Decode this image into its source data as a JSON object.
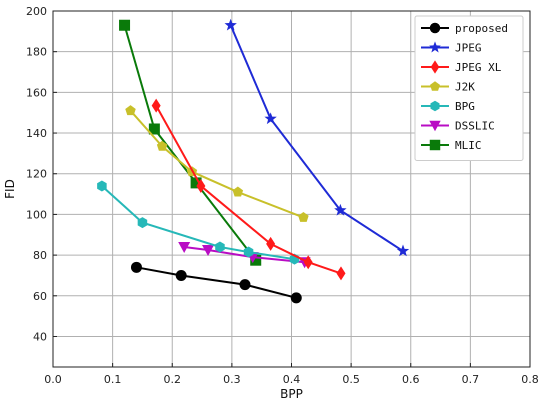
{
  "chart_data": {
    "type": "line",
    "title": "",
    "xlabel": "BPP",
    "ylabel": "FID",
    "xlim": [
      0.0,
      0.8
    ],
    "ylim": [
      25,
      200
    ],
    "xticks": [
      0.0,
      0.1,
      0.2,
      0.3,
      0.4,
      0.5,
      0.6,
      0.7,
      0.8
    ],
    "xtick_labels": [
      "0.0",
      "0.1",
      "0.2",
      "0.3",
      "0.4",
      "0.5",
      "0.6",
      "0.7",
      "0.8"
    ],
    "yticks": [
      40,
      60,
      80,
      100,
      120,
      140,
      160,
      180,
      200
    ],
    "ytick_labels": [
      "40",
      "60",
      "80",
      "100",
      "120",
      "140",
      "160",
      "180",
      "200"
    ],
    "grid": true,
    "legend_position": "top-right",
    "series": [
      {
        "name": "proposed",
        "color": "#000000",
        "marker": "circle",
        "x": [
          0.14,
          0.215,
          0.322,
          0.408
        ],
        "y": [
          74,
          70,
          65.5,
          59
        ]
      },
      {
        "name": "JPEG",
        "color": "#1f2bd6",
        "marker": "star",
        "x": [
          0.298,
          0.365,
          0.482,
          0.587
        ],
        "y": [
          193,
          147,
          102,
          82
        ]
      },
      {
        "name": "JPEG XL",
        "color": "#ff1a1a",
        "marker": "diamond",
        "x": [
          0.173,
          0.248,
          0.365,
          0.428,
          0.483
        ],
        "y": [
          153.5,
          114,
          85.5,
          76.5,
          71
        ]
      },
      {
        "name": "J2K",
        "color": "#c8c02a",
        "marker": "pentagon",
        "x": [
          0.13,
          0.183,
          0.233,
          0.31,
          0.42
        ],
        "y": [
          151,
          133.5,
          121,
          111,
          98.5
        ]
      },
      {
        "name": "BPG",
        "color": "#26b8b8",
        "marker": "hexagon",
        "x": [
          0.082,
          0.15,
          0.28,
          0.328,
          0.405
        ],
        "y": [
          114,
          96,
          84,
          81.5,
          78
        ]
      },
      {
        "name": "DSSLIC",
        "color": "#b90cc4",
        "marker": "triangle-down",
        "x": [
          0.22,
          0.26,
          0.335,
          0.422
        ],
        "y": [
          84,
          82.5,
          79,
          76.5
        ]
      },
      {
        "name": "MLIC",
        "color": "#0a7a0a",
        "marker": "square",
        "x": [
          0.12,
          0.17,
          0.24,
          0.34
        ],
        "y": [
          193,
          142,
          115.5,
          77.5
        ]
      }
    ]
  }
}
